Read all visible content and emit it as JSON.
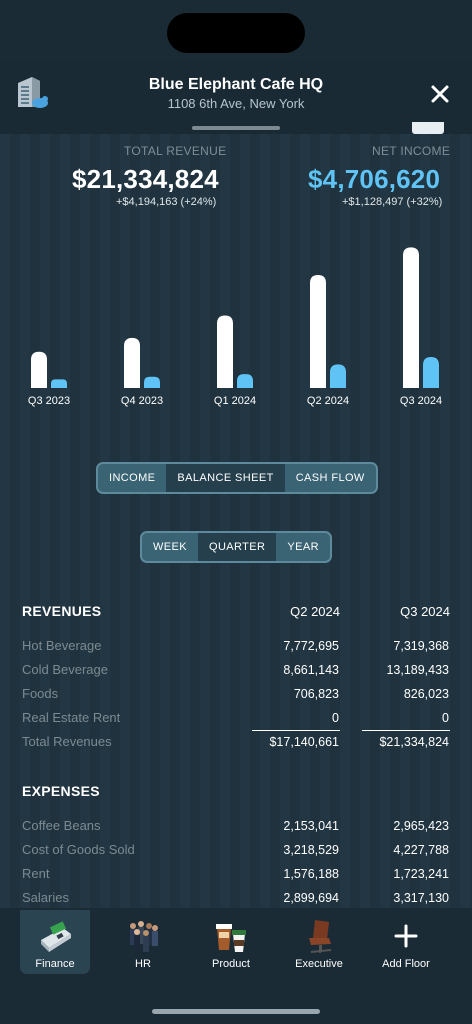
{
  "header": {
    "title": "Blue Elephant Cafe HQ",
    "address": "1108 6th Ave, New York",
    "building_icon": "building-icon",
    "close_icon": "close-icon"
  },
  "kpis": {
    "total_revenue": {
      "label": "TOTAL REVENUE",
      "value": "$21,334,824",
      "delta": "+$4,194,163 (+24%)"
    },
    "net_income": {
      "label": "NET INCOME",
      "value": "$4,706,620",
      "delta": "+$1,128,497 (+32%)"
    }
  },
  "colors": {
    "revenue_bar": "#ffffff",
    "income_bar": "#5fc4f5",
    "net_income_text": "#5fc4f5",
    "accent": "#3a6373"
  },
  "chart_data": {
    "type": "bar",
    "categories": [
      "Q3 2023",
      "Q4 2023",
      "Q1 2024",
      "Q2 2024",
      "Q3 2024"
    ],
    "series": [
      {
        "values": [
          5500000,
          7600000,
          11000000,
          17140661,
          21334824
        ]
      },
      {
        "values": [
          1300000,
          1700000,
          2100000,
          3578123,
          4706620
        ]
      }
    ],
    "ylim": [
      0,
      22000000
    ],
    "grid": false,
    "legend": "none"
  },
  "statement_tabs": [
    {
      "label": "INCOME",
      "active": false
    },
    {
      "label": "BALANCE SHEET",
      "active": true
    },
    {
      "label": "CASH FLOW",
      "active": false
    }
  ],
  "period_tabs": [
    {
      "label": "WEEK",
      "active": false
    },
    {
      "label": "QUARTER",
      "active": true
    },
    {
      "label": "YEAR",
      "active": false
    }
  ],
  "revenues": {
    "title": "REVENUES",
    "columns": [
      "Q2 2024",
      "Q3 2024"
    ],
    "rows": [
      {
        "label": "Hot Beverage",
        "q2": "7,772,695",
        "q3": "7,319,368"
      },
      {
        "label": "Cold Beverage",
        "q2": "8,661,143",
        "q3": "13,189,433"
      },
      {
        "label": "Foods",
        "q2": "706,823",
        "q3": "826,023"
      },
      {
        "label": "Real Estate Rent",
        "q2": "0",
        "q3": "0"
      },
      {
        "label": "Total Revenues",
        "q2": "$17,140,661",
        "q3": "$21,334,824"
      }
    ]
  },
  "expenses": {
    "title": "EXPENSES",
    "rows": [
      {
        "label": "Coffee Beans",
        "q2": "2,153,041",
        "q3": "2,965,423"
      },
      {
        "label": "Cost of Goods Sold",
        "q2": "3,218,529",
        "q3": "4,227,788"
      },
      {
        "label": "Rent",
        "q2": "1,576,188",
        "q3": "1,723,241"
      },
      {
        "label": "Salaries",
        "q2": "2,899,694",
        "q3": "3,317,130"
      }
    ]
  },
  "tabbar": [
    {
      "label": "Finance",
      "icon": "cash-register-icon",
      "active": true
    },
    {
      "label": "HR",
      "icon": "people-icon",
      "active": false
    },
    {
      "label": "Product",
      "icon": "coffee-cups-icon",
      "active": false
    },
    {
      "label": "Executive",
      "icon": "office-chair-icon",
      "active": false
    },
    {
      "label": "Add Floor",
      "icon": "plus-icon",
      "active": false
    }
  ]
}
